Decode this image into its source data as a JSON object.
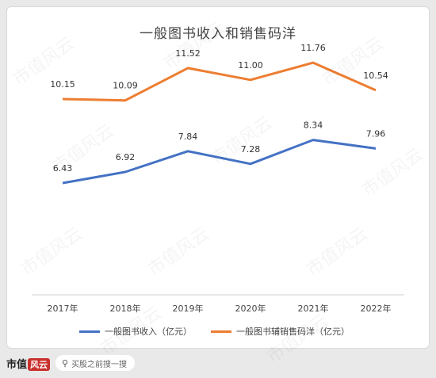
{
  "chart_data": {
    "type": "line",
    "title": "一般图书收入和销售码洋",
    "categories": [
      "2017年",
      "2018年",
      "2019年",
      "2020年",
      "2021年",
      "2022年"
    ],
    "series": [
      {
        "name": "一般图书收入（亿元）",
        "color": "#4472c4",
        "values": [
          6.43,
          6.92,
          7.84,
          7.28,
          8.34,
          7.96
        ]
      },
      {
        "name": "一般图书辅销售码洋（亿元）",
        "color": "#ed7d31",
        "values": [
          10.15,
          10.09,
          11.52,
          11.0,
          11.76,
          10.54
        ]
      }
    ],
    "ylim": [
      0,
      14
    ],
    "grid": false,
    "legend": "bottom"
  },
  "footer": {
    "logo_text": "市值",
    "logo_mark": "风云",
    "search_placeholder": "买股之前搜一搜"
  },
  "watermark": "市值风云"
}
